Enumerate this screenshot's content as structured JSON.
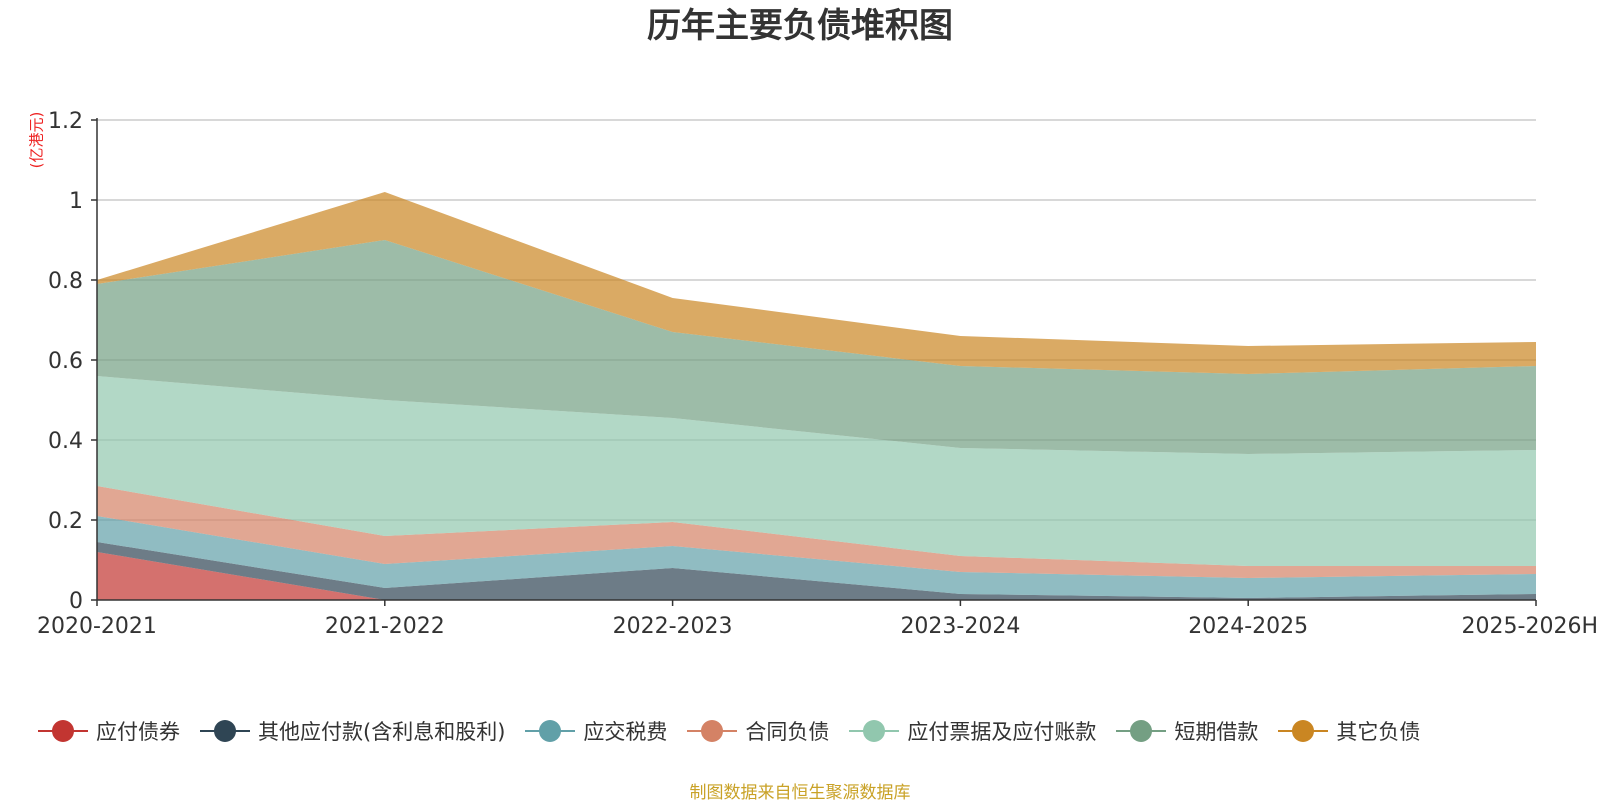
{
  "chart_data": {
    "type": "area",
    "title": "历年主要负债堆积图",
    "ylabel": "(亿港元)",
    "categories": [
      "2020-2021",
      "2021-2022",
      "2022-2023",
      "2023-2024",
      "2024-2025",
      "2025-2026H"
    ],
    "ylim": [
      0,
      1.2
    ],
    "yticks": [
      "0",
      "0.2",
      "0.4",
      "0.6",
      "0.8",
      "1",
      "1.2"
    ],
    "yticks_values": [
      0,
      0.2,
      0.4,
      0.6,
      0.8,
      1.0,
      1.2
    ],
    "stacked": true,
    "grid": true,
    "legend_position": "bottom",
    "series": [
      {
        "name": "应付债券",
        "color": "#c23531",
        "values": [
          0.12,
          0.0,
          0.0,
          0.0,
          0.0,
          0.0
        ]
      },
      {
        "name": "其他应付款(含利息和股利)",
        "color": "#2f4554",
        "values": [
          0.025,
          0.03,
          0.08,
          0.015,
          0.005,
          0.015
        ]
      },
      {
        "name": "应交税费",
        "color": "#61a0a8",
        "values": [
          0.065,
          0.06,
          0.055,
          0.055,
          0.05,
          0.05
        ]
      },
      {
        "name": "合同负债",
        "color": "#d48265",
        "values": [
          0.075,
          0.07,
          0.06,
          0.04,
          0.03,
          0.02
        ]
      },
      {
        "name": "应付票据及应付账款",
        "color": "#91c7ae",
        "values": [
          0.275,
          0.34,
          0.26,
          0.27,
          0.28,
          0.29
        ]
      },
      {
        "name": "短期借款",
        "color": "#749f83",
        "values": [
          0.23,
          0.4,
          0.215,
          0.205,
          0.2,
          0.21
        ]
      },
      {
        "name": "其它负债",
        "color": "#ca8622",
        "values": [
          0.01,
          0.12,
          0.085,
          0.075,
          0.07,
          0.06
        ]
      }
    ]
  },
  "footer": {
    "source": "制图数据来自恒生聚源数据库"
  }
}
